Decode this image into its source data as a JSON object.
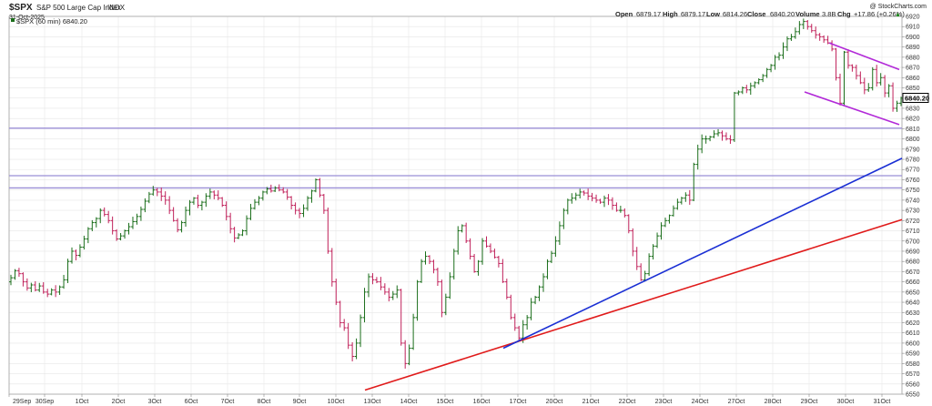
{
  "header": {
    "symbol": "$SPX",
    "name": "S&P 500 Large Cap Index",
    "exchange": "INDX",
    "date": "31-Oct-2025",
    "source": "@ StockCharts.com",
    "open_label": "Open",
    "open": "6879.17",
    "high_label": "High",
    "high": "6879.17",
    "low_label": "Low",
    "low": "6814.26",
    "close_label": "Close",
    "close": "6840.20",
    "volume_label": "Volume",
    "volume": "3.8B",
    "chg_label": "Chg",
    "chg": "+17.86 (+0.26%)",
    "chg_arrow": "▲",
    "legend": "$SPX (60 min) 6840.20"
  },
  "colors": {
    "up": "#1b6e1b",
    "down": "#c0215a",
    "grid": "#e6e6e6",
    "support_line": "#e01b1b",
    "trend_line": "#1a2fd4",
    "channel": "#b22ad8",
    "horizontal": "#9b8fd6",
    "last_price_box": "#000000"
  },
  "chart_data": {
    "type": "ohlc",
    "timeframe": "60 min",
    "ylim": [
      6550,
      6920
    ],
    "yticks": [
      6550,
      6560,
      6570,
      6580,
      6590,
      6600,
      6610,
      6620,
      6630,
      6640,
      6650,
      6660,
      6670,
      6680,
      6690,
      6700,
      6710,
      6720,
      6730,
      6740,
      6750,
      6760,
      6770,
      6780,
      6790,
      6800,
      6810,
      6820,
      6830,
      6840,
      6850,
      6860,
      6870,
      6880,
      6890,
      6900,
      6910,
      6920
    ],
    "x_tick_labels": [
      "29Sep",
      "30Sep",
      "1Oct",
      "2Oct",
      "3Oct",
      "6Oct",
      "7Oct",
      "8Oct",
      "9Oct",
      "10Oct",
      "13Oct",
      "14Oct",
      "15Oct",
      "16Oct",
      "17Oct",
      "20Oct",
      "21Oct",
      "22Oct",
      "23Oct",
      "24Oct",
      "27Oct",
      "28Oct",
      "29Oct",
      "30Oct",
      "31Oct"
    ],
    "last_price": "6840.20",
    "closes": [
      6664,
      6671,
      6668,
      6660,
      6654,
      6657,
      6652,
      6656,
      6650,
      6648,
      6652,
      6650,
      6655,
      6662,
      6680,
      6690,
      6686,
      6694,
      6702,
      6712,
      6718,
      6722,
      6730,
      6726,
      6720,
      6710,
      6702,
      6705,
      6710,
      6714,
      6719,
      6724,
      6731,
      6739,
      6746,
      6750,
      6748,
      6744,
      6740,
      6730,
      6720,
      6711,
      6718,
      6730,
      6738,
      6742,
      6735,
      6738,
      6744,
      6748,
      6745,
      6742,
      6735,
      6724,
      6712,
      6703,
      6706,
      6710,
      6722,
      6732,
      6738,
      6742,
      6748,
      6751,
      6749,
      6752,
      6750,
      6748,
      6743,
      6735,
      6730,
      6727,
      6732,
      6742,
      6749,
      6760,
      6745,
      6730,
      6690,
      6660,
      6640,
      6620,
      6615,
      6598,
      6587,
      6600,
      6625,
      6650,
      6665,
      6662,
      6660,
      6655,
      6650,
      6645,
      6648,
      6652,
      6600,
      6580,
      6595,
      6625,
      6660,
      6680,
      6685,
      6680,
      6672,
      6660,
      6630,
      6645,
      6665,
      6690,
      6710,
      6715,
      6700,
      6685,
      6670,
      6680,
      6700,
      6695,
      6690,
      6684,
      6678,
      6660,
      6645,
      6625,
      6615,
      6605,
      6618,
      6625,
      6640,
      6645,
      6655,
      6665,
      6680,
      6688,
      6700,
      6715,
      6730,
      6740,
      6742,
      6745,
      6748,
      6747,
      6744,
      6742,
      6740,
      6738,
      6742,
      6740,
      6735,
      6730,
      6730,
      6725,
      6710,
      6690,
      6675,
      6662,
      6668,
      6685,
      6695,
      6705,
      6715,
      6720,
      6725,
      6732,
      6738,
      6742,
      6745,
      6740,
      6775,
      6790,
      6800,
      6800,
      6802,
      6805,
      6806,
      6803,
      6800,
      6799,
      6845,
      6846,
      6850,
      6848,
      6852,
      6855,
      6858,
      6862,
      6868,
      6872,
      6880,
      6882,
      6890,
      6898,
      6900,
      6905,
      6912,
      6915,
      6910,
      6906,
      6902,
      6900,
      6897,
      6894,
      6888,
      6860,
      6835,
      6885,
      6872,
      6870,
      6862,
      6855,
      6848,
      6850,
      6868,
      6855,
      6860,
      6845,
      6852,
      6830,
      6835,
      6840
    ],
    "annotations": {
      "horizontal_levels": [
        6810.5,
        6764,
        6752
      ],
      "support_line": {
        "from": [
          "13Oct",
          6554
        ],
        "to": [
          "31Oct end",
          6721
        ]
      },
      "trend_line": {
        "from": [
          "17Oct",
          6595
        ],
        "to": [
          "31Oct end",
          6781
        ]
      },
      "channel_upper": {
        "from": [
          "30Oct",
          6894
        ],
        "to": [
          "31Oct",
          6868
        ]
      },
      "channel_lower": {
        "from": [
          "29Oct",
          6846
        ],
        "to": [
          "31Oct",
          6814
        ]
      }
    }
  }
}
